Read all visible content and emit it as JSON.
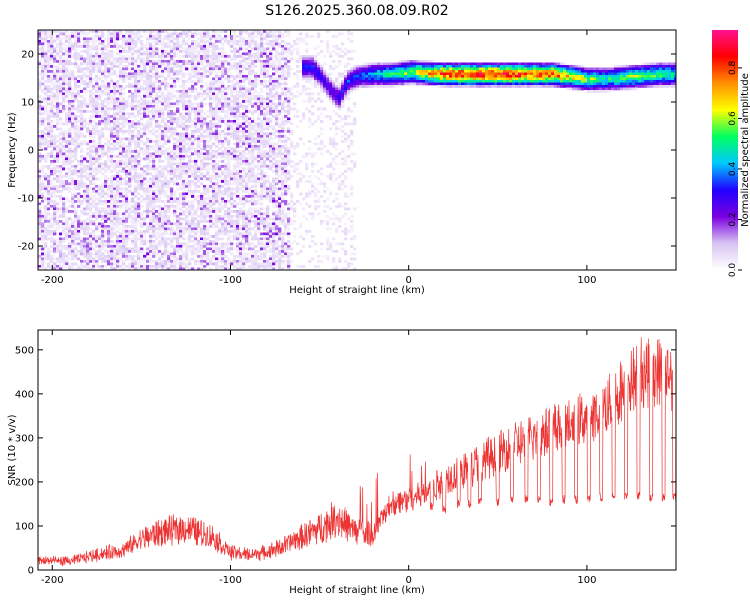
{
  "title": "S126.2025.360.08.09.R02",
  "chart_data": [
    {
      "type": "heatmap",
      "xlabel": "Height of straight line (km)",
      "ylabel": "Frequency (Hz)",
      "xlim": [
        -208,
        150
      ],
      "ylim": [
        -25,
        25
      ],
      "x_ticks": [
        -200,
        -100,
        0,
        100
      ],
      "y_ticks": [
        -20,
        -10,
        0,
        10,
        20
      ],
      "colorbar": {
        "label": "Normalized spectral amplitude",
        "range": [
          0,
          0.95
        ],
        "ticks": [
          0.0,
          0.2,
          0.4,
          0.6,
          0.8
        ],
        "colors": [
          "#ffffff",
          "#d8c4f2",
          "#7a00e0",
          "#2000ff",
          "#00c8ff",
          "#00ff60",
          "#ffff00",
          "#ff9000",
          "#ff0000",
          "#ff1090"
        ]
      },
      "ridge": [
        {
          "x": -55,
          "y": 17.5,
          "v": 0.35
        },
        {
          "x": -50,
          "y": 15.5,
          "v": 0.3
        },
        {
          "x": -45,
          "y": 13,
          "v": 0.28
        },
        {
          "x": -40,
          "y": 11,
          "v": 0.3
        },
        {
          "x": -35,
          "y": 14.5,
          "v": 0.35
        },
        {
          "x": -30,
          "y": 15.5,
          "v": 0.35
        },
        {
          "x": -20,
          "y": 16,
          "v": 0.45
        },
        {
          "x": -10,
          "y": 16,
          "v": 0.55
        },
        {
          "x": 0,
          "y": 16.5,
          "v": 0.6
        },
        {
          "x": 20,
          "y": 16,
          "v": 0.85
        },
        {
          "x": 40,
          "y": 16,
          "v": 0.9
        },
        {
          "x": 60,
          "y": 16,
          "v": 0.85
        },
        {
          "x": 80,
          "y": 16,
          "v": 0.8
        },
        {
          "x": 90,
          "y": 15.5,
          "v": 0.7
        },
        {
          "x": 100,
          "y": 15,
          "v": 0.6
        },
        {
          "x": 110,
          "y": 15,
          "v": 0.5
        },
        {
          "x": 125,
          "y": 15.5,
          "v": 0.6
        },
        {
          "x": 140,
          "y": 16,
          "v": 0.55
        },
        {
          "x": 150,
          "y": 16,
          "v": 0.5
        }
      ]
    },
    {
      "type": "line",
      "xlabel": "Height of straight line (km)",
      "ylabel": "SNR (10 * v/v)",
      "xlim": [
        -208,
        150
      ],
      "ylim": [
        0,
        545
      ],
      "x_ticks": [
        -200,
        -100,
        0,
        100
      ],
      "y_ticks": [
        0,
        100,
        200,
        300,
        400,
        500
      ],
      "series": [
        {
          "color": "#ee3333",
          "x": [
            -208,
            -190,
            -175,
            -160,
            -150,
            -140,
            -125,
            -110,
            -100,
            -90,
            -80,
            -70,
            -60,
            -50,
            -40,
            -30,
            -20,
            -10,
            0,
            10,
            20,
            30,
            40,
            50,
            60,
            70,
            80,
            90,
            100,
            110,
            120,
            130,
            140,
            150
          ],
          "values": [
            22,
            20,
            35,
            45,
            70,
            85,
            95,
            75,
            40,
            35,
            40,
            55,
            75,
            95,
            120,
            85,
            80,
            150,
            160,
            180,
            205,
            225,
            245,
            265,
            285,
            300,
            320,
            330,
            345,
            370,
            410,
            450,
            450,
            445
          ],
          "dips": [
            {
              "x": 13,
              "low": 145
            },
            {
              "x": 20,
              "low": 140
            },
            {
              "x": 28,
              "low": 150
            },
            {
              "x": 34,
              "low": 150
            },
            {
              "x": 40,
              "low": 155
            },
            {
              "x": 50,
              "low": 155
            },
            {
              "x": 58,
              "low": 160
            },
            {
              "x": 66,
              "low": 160
            },
            {
              "x": 73,
              "low": 160
            },
            {
              "x": 80,
              "low": 155
            },
            {
              "x": 87,
              "low": 160
            },
            {
              "x": 94,
              "low": 160
            },
            {
              "x": 101,
              "low": 160
            },
            {
              "x": 108,
              "low": 165
            },
            {
              "x": 115,
              "low": 165
            },
            {
              "x": 122,
              "low": 170
            },
            {
              "x": 129,
              "low": 170
            },
            {
              "x": 136,
              "low": 165
            },
            {
              "x": 143,
              "low": 165
            },
            {
              "x": 149,
              "low": 165
            }
          ]
        }
      ]
    }
  ]
}
